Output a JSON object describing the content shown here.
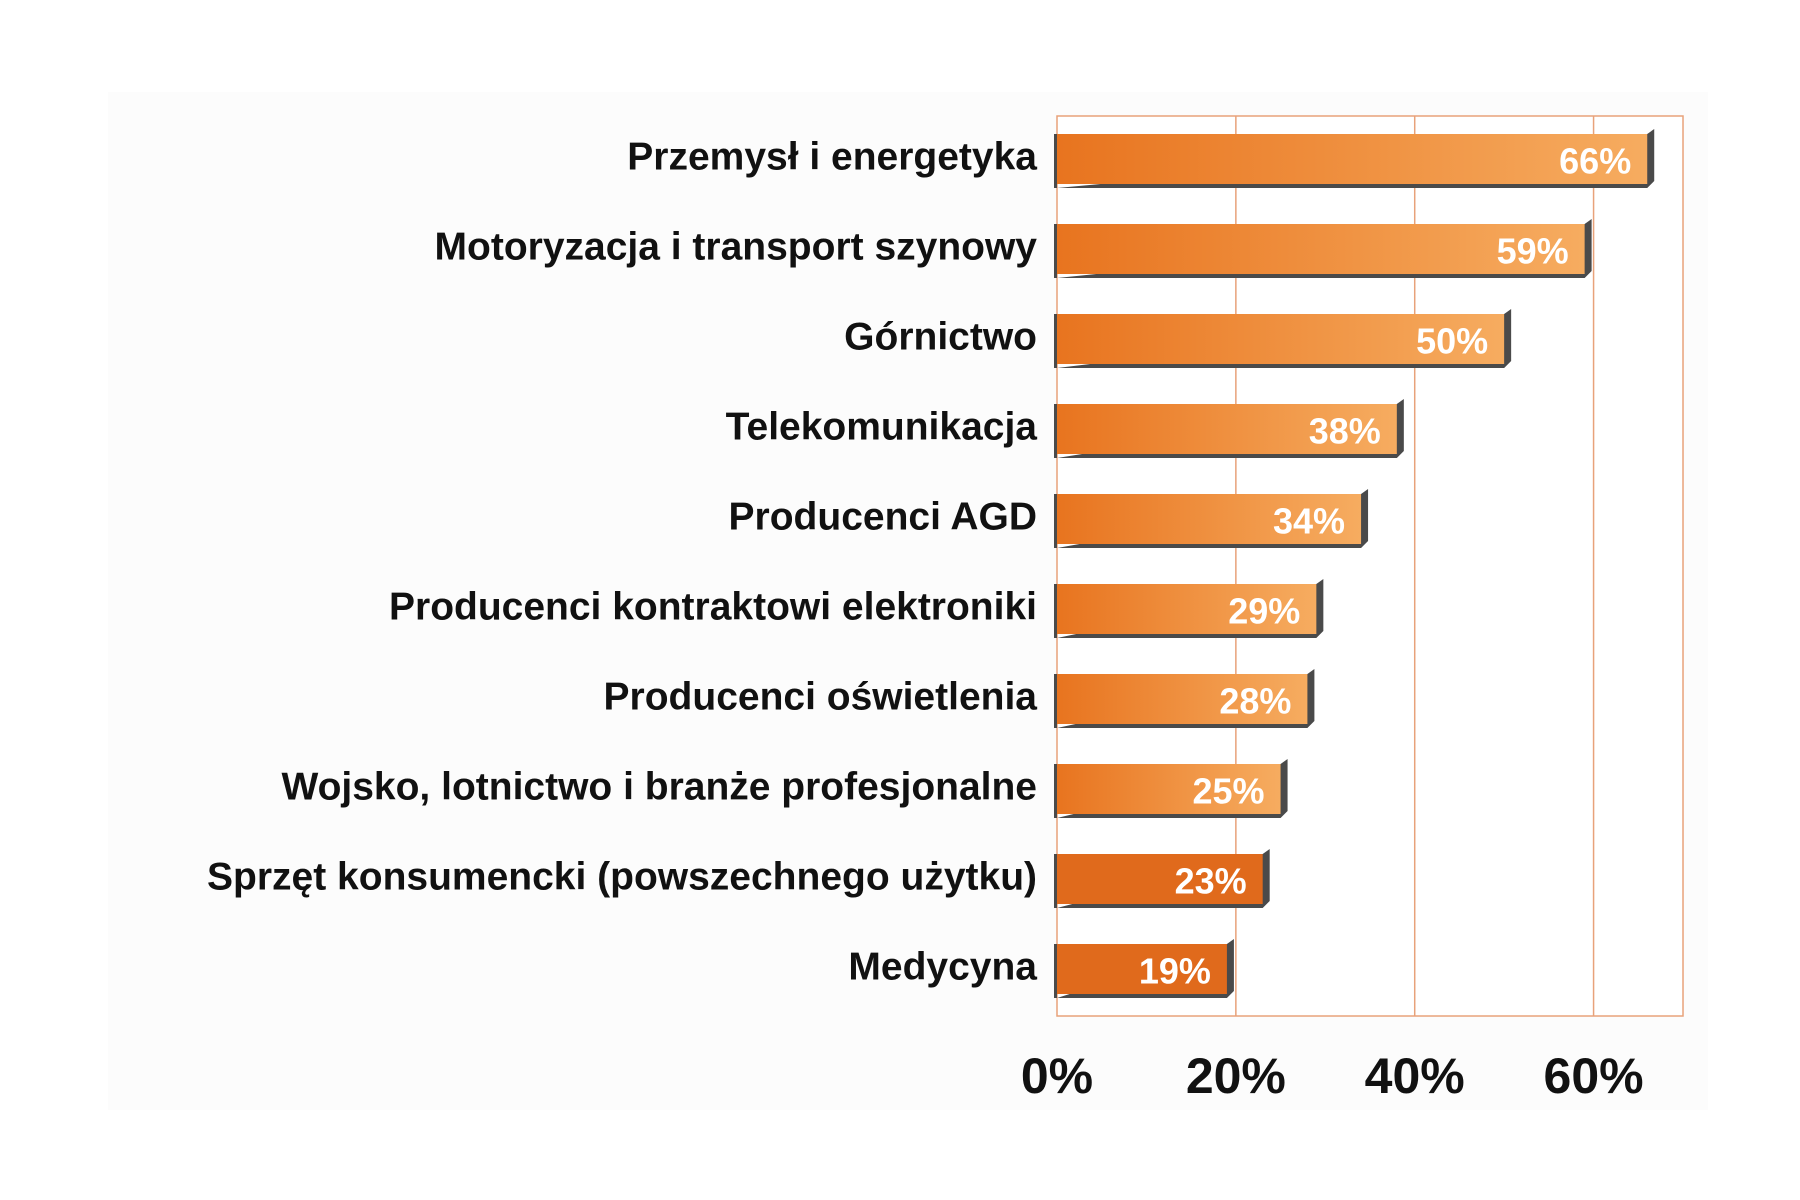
{
  "chart_data": {
    "type": "bar",
    "orientation": "horizontal",
    "categories": [
      "Przemysł i energetyka",
      "Motoryzacja i transport szynowy",
      "Górnictwo",
      "Telekomunikacja",
      "Producenci AGD",
      "Producenci kontraktowi elektroniki",
      "Producenci oświetlenia",
      "Wojsko, lotnictwo i branże profesjonalne",
      "Sprzęt konsumencki (powszechnego użytku)",
      "Medycyna"
    ],
    "values": [
      66,
      59,
      50,
      38,
      34,
      29,
      28,
      25,
      23,
      19
    ],
    "value_labels": [
      "66%",
      "59%",
      "50%",
      "38%",
      "34%",
      "29%",
      "28%",
      "25%",
      "23%",
      "19%"
    ],
    "xlim": [
      0,
      70
    ],
    "x_ticks": [
      0,
      20,
      40,
      60
    ],
    "x_tick_labels": [
      "0%",
      "20%",
      "40%",
      "60%"
    ],
    "grid": "vertical",
    "legend": "none",
    "colors": {
      "bar_light": "#f5a65b",
      "bar_mid": "#ee8a38",
      "bar_dark": "#e06a1c",
      "bar_side": "#4a4a4a",
      "gridline": "#e8a27a",
      "plot_border": "#e8a27a",
      "plot_background": "#ffffff",
      "chart_background": "#fcfcfc"
    }
  }
}
